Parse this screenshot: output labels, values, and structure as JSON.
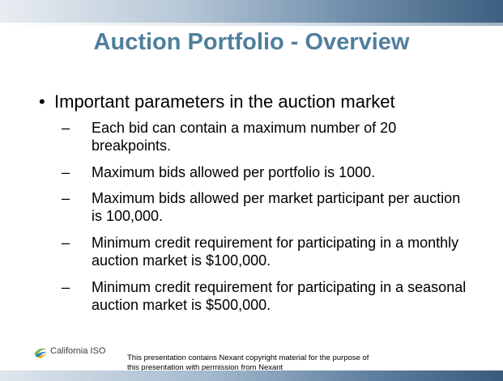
{
  "header": {
    "title": "Auction Portfolio - Overview"
  },
  "bullet": {
    "text": "Important parameters in the auction market",
    "items": [
      "Each bid can contain a maximum number of 20 breakpoints.",
      "Maximum bids allowed per portfolio is 1000.",
      "Maximum bids allowed per market participant per auction is 100,000.",
      "Minimum credit requirement for participating in a monthly auction market is $100,000.",
      "Minimum credit requirement for participating in a seasonal auction market is $500,000."
    ]
  },
  "footer": {
    "logo": "California ISO",
    "note": "This presentation contains Nexant copyright material for the purpose of this presentation with permission from Nexant"
  }
}
